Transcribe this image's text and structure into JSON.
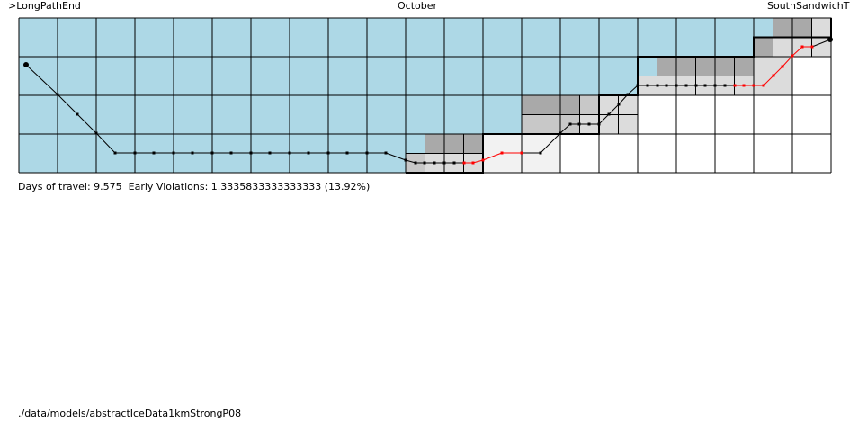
{
  "header": {
    "start_label": ">LongPathEnd",
    "month_label": "October",
    "end_label": "SouthSandwichT"
  },
  "stats": {
    "days_of_travel": "9.575",
    "early_violations": "1.3335833333333333",
    "early_violations_pct": "13.92%",
    "text": "Days of travel: 9.575  Early Violations: 1.3335833333333333 (13.92%)"
  },
  "footer": {
    "model_path": "./data/models/abstractIceData1kmStrongP08"
  },
  "colors": {
    "ice": "#add8e6",
    "cell_grid": "#000000",
    "cell_fine_dark": "#a9a9a9",
    "cell_fine_mid": "#c8c8c8",
    "cell_fine_light": "#dcdcdc",
    "cell_fine_pale": "#f2f2f2",
    "path_ok": "#000000",
    "path_violation": "#ff0000"
  }
}
